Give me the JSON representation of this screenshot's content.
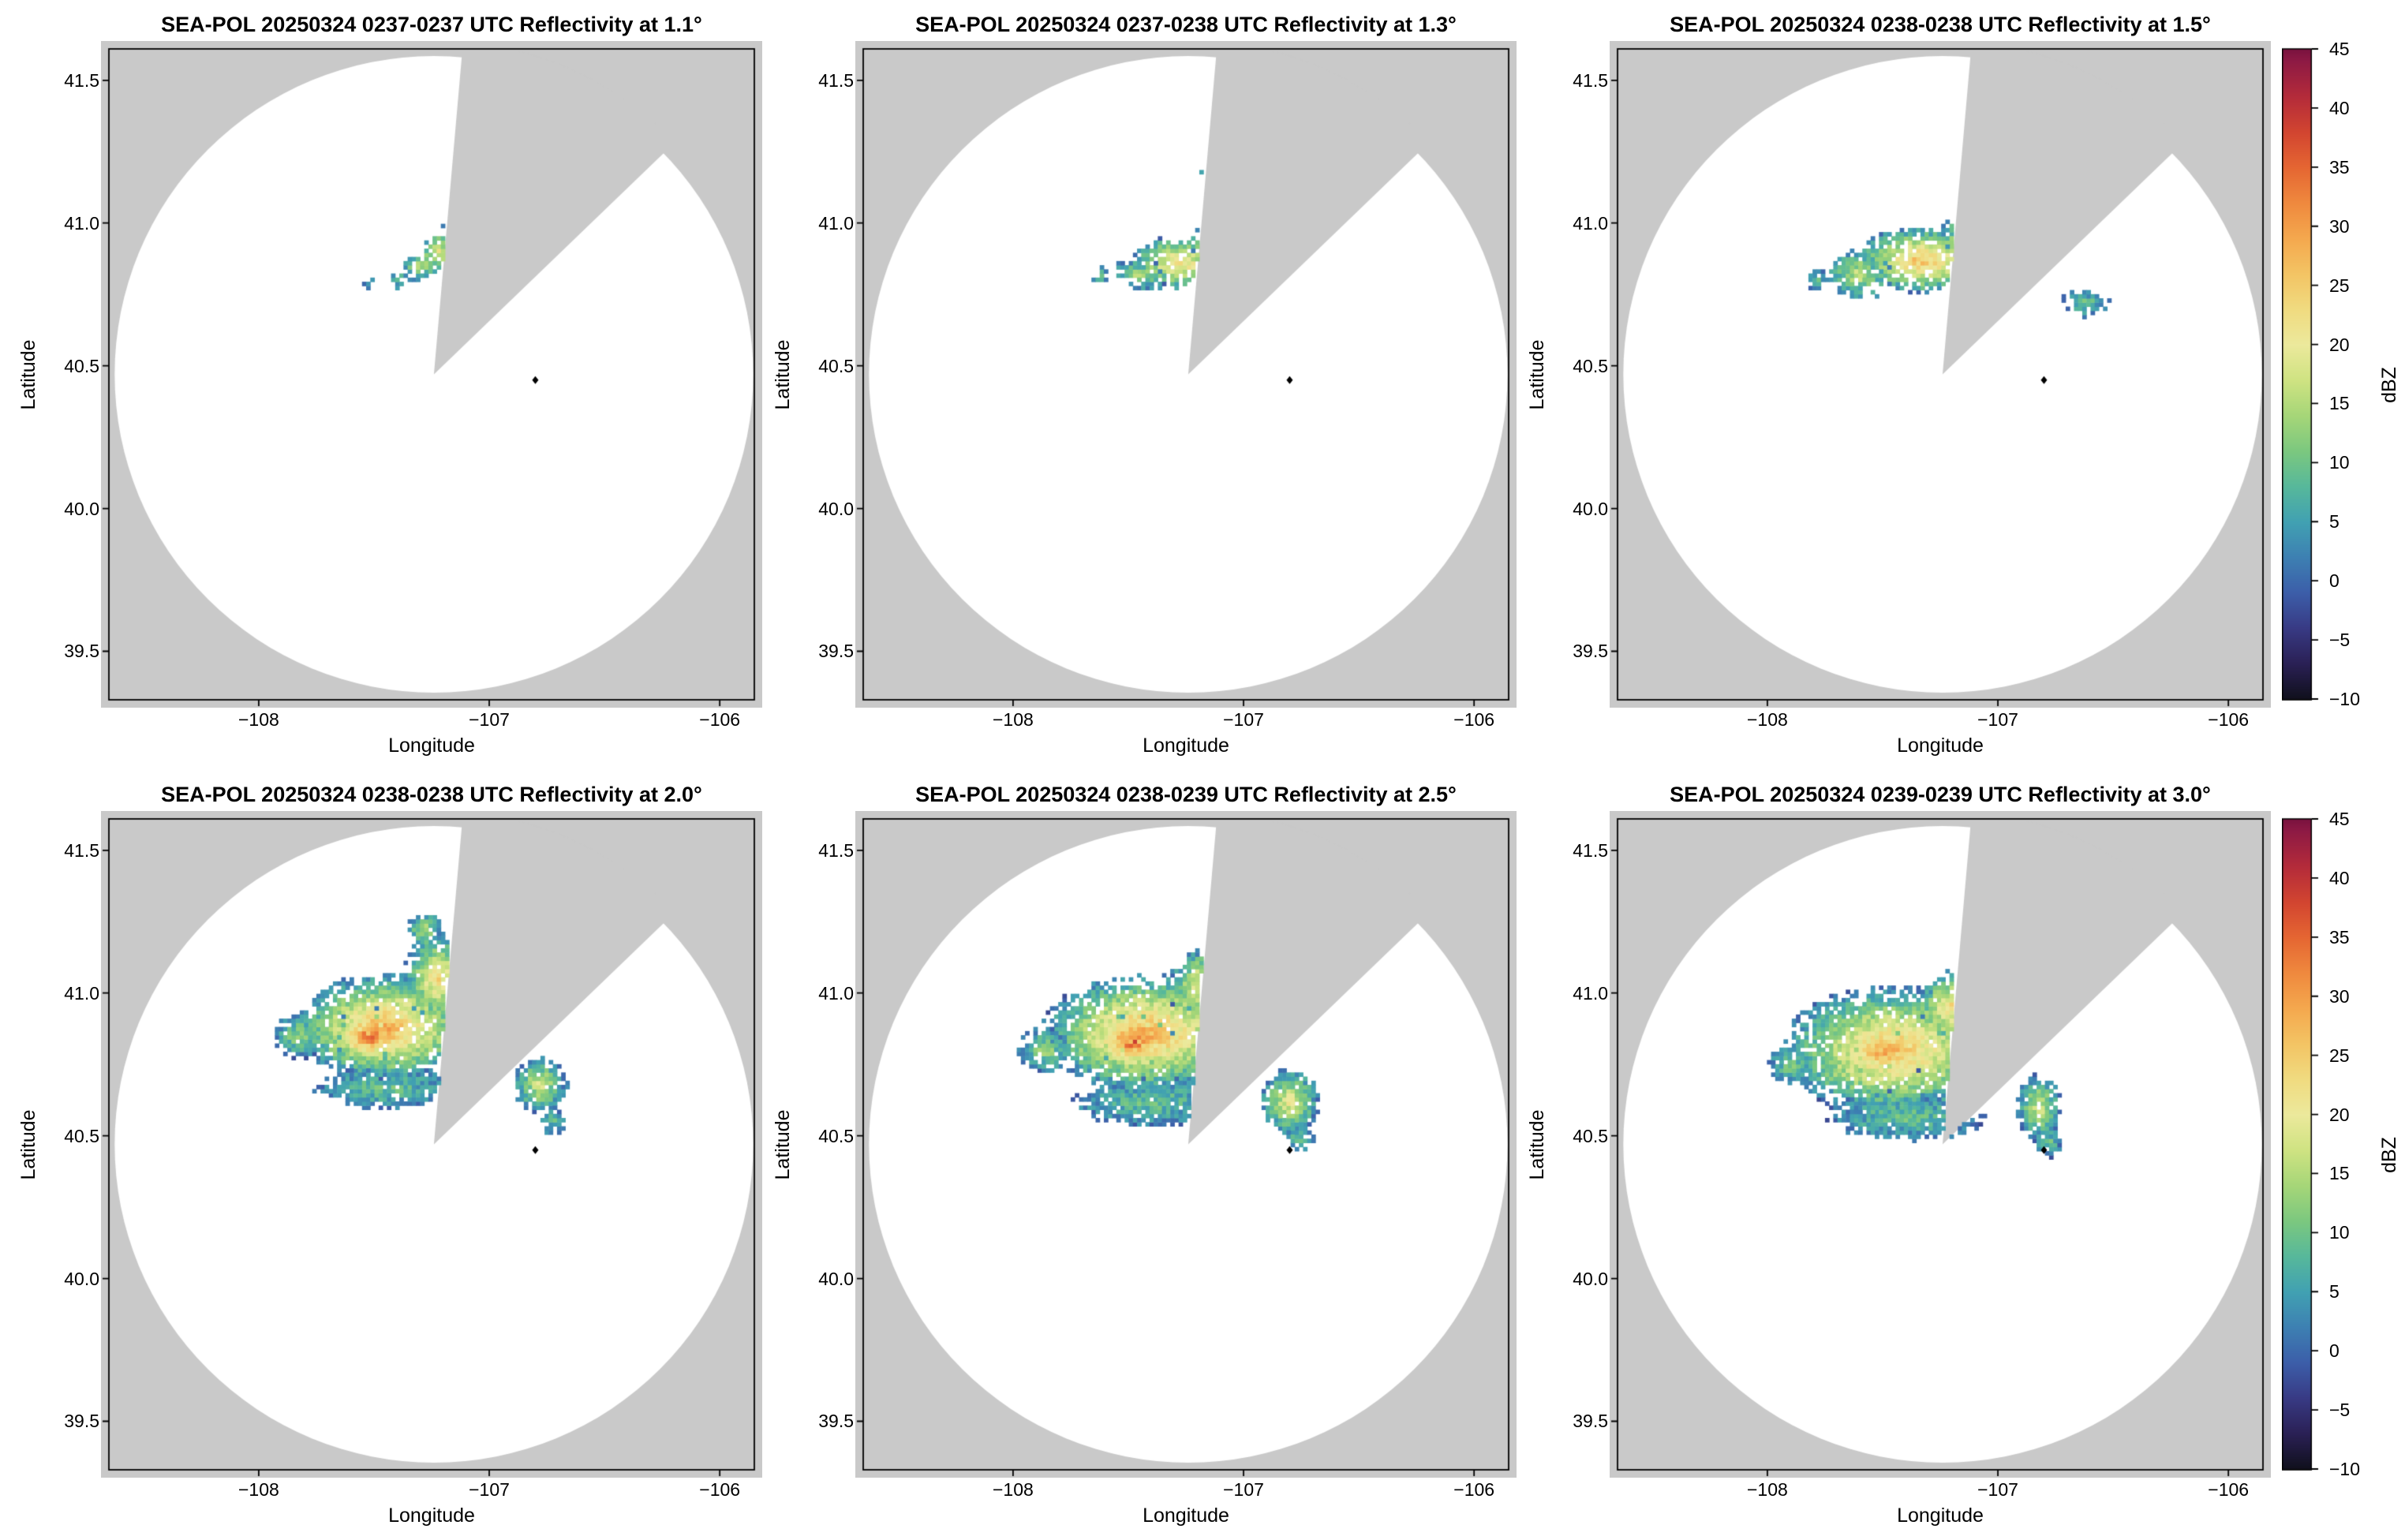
{
  "figure": {
    "background": "#ffffff",
    "panel_bg": "#c9c9c9",
    "coverage_color": "#ffffff",
    "text_color": "#000000"
  },
  "chart_data": {
    "type": "heatmap",
    "description": "Six PPI radar reflectivity panels from the SEA-POL radar on 20250324, elevations 1.1 to 3.0 degrees, plotted in longitude/latitude with a masked (gray) blocked sector and shared dBZ colorbar per row.",
    "radar_name": "SEA-POL",
    "date": "20250324",
    "axes": {
      "xlabel": "Longitude",
      "ylabel": "Latitude",
      "xlim": [
        -108.65,
        -105.85
      ],
      "ylim": [
        39.33,
        41.61
      ],
      "xticks": [
        -108,
        -107,
        -106
      ],
      "xtick_labels": [
        "−108",
        "−107",
        "−106"
      ],
      "yticks": [
        39.5,
        40.0,
        40.5,
        41.0,
        41.5
      ],
      "ytick_labels": [
        "39.5",
        "40.0",
        "40.5",
        "41.0",
        "41.5"
      ]
    },
    "colorbar": {
      "label": "dBZ",
      "min": -10,
      "max": 45,
      "ticks": [
        -10,
        -5,
        0,
        5,
        10,
        15,
        20,
        25,
        30,
        35,
        40,
        45
      ],
      "tick_labels": [
        "−10",
        "−5",
        "0",
        "5",
        "10",
        "15",
        "20",
        "25",
        "30",
        "35",
        "40",
        "45"
      ],
      "stops": [
        [
          -10,
          "#10101c"
        ],
        [
          -7,
          "#2a2055"
        ],
        [
          -4,
          "#383a84"
        ],
        [
          -1,
          "#3c5ea9"
        ],
        [
          2,
          "#3d80b2"
        ],
        [
          5,
          "#41a1b2"
        ],
        [
          8,
          "#57b89b"
        ],
        [
          11,
          "#7cc87f"
        ],
        [
          14,
          "#a6d678"
        ],
        [
          17,
          "#cfe382"
        ],
        [
          20,
          "#ece99c"
        ],
        [
          23,
          "#f0db80"
        ],
        [
          26,
          "#f3c464"
        ],
        [
          29,
          "#f4a84e"
        ],
        [
          32,
          "#ef893e"
        ],
        [
          35,
          "#e56632"
        ],
        [
          38,
          "#d24530"
        ],
        [
          41,
          "#b42b3a"
        ],
        [
          44,
          "#8e1a44"
        ],
        [
          45,
          "#7a123f"
        ]
      ]
    },
    "radar": {
      "coverage_center": [
        -107.24,
        40.47
      ],
      "coverage_radius_lon": 1.385,
      "coverage_radius_lat": 1.115,
      "blocked_sector_deg": [
        5,
        46
      ],
      "site_marker": [
        -106.8,
        40.45
      ]
    },
    "panels": [
      {
        "title": "SEA-POL 20250324 0237-0237 UTC Reflectivity at 1.1°",
        "elevation_deg": 1.1,
        "time_utc": "0237-0237",
        "seed": 101,
        "sparsity": 0.5,
        "echo_blobs": [
          [
            -107.22,
            40.9,
            0.1,
            0.075,
            20
          ],
          [
            -107.3,
            40.85,
            0.09,
            0.06,
            16
          ],
          [
            -107.17,
            40.96,
            0.06,
            0.05,
            15
          ],
          [
            -107.38,
            40.8,
            0.055,
            0.04,
            10
          ],
          [
            -107.52,
            40.79,
            0.03,
            0.025,
            8
          ],
          [
            -107.12,
            40.86,
            0.04,
            0.05,
            12
          ]
        ]
      },
      {
        "title": "SEA-POL 20250324 0237-0238 UTC Reflectivity at 1.3°",
        "elevation_deg": 1.3,
        "time_utc": "0237-0238",
        "seed": 202,
        "sparsity": 0.32,
        "echo_blobs": [
          [
            -107.28,
            40.86,
            0.22,
            0.1,
            24
          ],
          [
            -107.13,
            40.92,
            0.11,
            0.09,
            23
          ],
          [
            -107.45,
            40.82,
            0.13,
            0.06,
            15
          ],
          [
            -107.08,
            41.22,
            0.05,
            0.06,
            12
          ],
          [
            -107.16,
            41.17,
            0.035,
            0.04,
            9
          ],
          [
            -107.62,
            40.82,
            0.06,
            0.04,
            8
          ]
        ]
      },
      {
        "title": "SEA-POL 20250324 0238-0238 UTC Reflectivity at 1.5°",
        "elevation_deg": 1.5,
        "time_utc": "0238-0238",
        "seed": 303,
        "sparsity": 0.24,
        "echo_blobs": [
          [
            -107.33,
            40.87,
            0.3,
            0.12,
            27
          ],
          [
            -107.12,
            40.96,
            0.13,
            0.11,
            25
          ],
          [
            -107.6,
            40.82,
            0.15,
            0.09,
            17
          ],
          [
            -107.05,
            41.25,
            0.06,
            0.07,
            12
          ],
          [
            -106.62,
            40.72,
            0.11,
            0.05,
            10
          ],
          [
            -107.78,
            40.8,
            0.05,
            0.04,
            8
          ]
        ]
      },
      {
        "title": "SEA-POL 20250324 0238-0238 UTC Reflectivity at 2.0°",
        "elevation_deg": 2.0,
        "time_utc": "0238-0238",
        "seed": 404,
        "sparsity": 0.16,
        "echo_blobs": [
          [
            -107.45,
            40.88,
            0.4,
            0.19,
            29
          ],
          [
            -107.52,
            40.85,
            0.17,
            0.1,
            37
          ],
          [
            -107.22,
            41.05,
            0.16,
            0.16,
            24
          ],
          [
            -107.28,
            41.22,
            0.08,
            0.07,
            16
          ],
          [
            -107.82,
            40.85,
            0.12,
            0.08,
            14
          ],
          [
            -107.45,
            40.67,
            0.32,
            0.08,
            10
          ],
          [
            -106.78,
            40.68,
            0.12,
            0.1,
            18
          ],
          [
            -106.72,
            40.55,
            0.06,
            0.05,
            9
          ]
        ]
      },
      {
        "title": "SEA-POL 20250324 0238-0239 UTC Reflectivity at 2.5°",
        "elevation_deg": 2.5,
        "time_utc": "0238-0239",
        "seed": 505,
        "sparsity": 0.13,
        "echo_blobs": [
          [
            -107.42,
            40.86,
            0.46,
            0.21,
            29
          ],
          [
            -107.48,
            40.83,
            0.19,
            0.11,
            37
          ],
          [
            -107.15,
            41.02,
            0.18,
            0.14,
            26
          ],
          [
            -107.1,
            40.9,
            0.1,
            0.1,
            24
          ],
          [
            -107.86,
            40.8,
            0.12,
            0.08,
            14
          ],
          [
            -107.4,
            40.62,
            0.36,
            0.09,
            10
          ],
          [
            -106.8,
            40.62,
            0.13,
            0.12,
            20
          ],
          [
            -106.76,
            40.5,
            0.07,
            0.06,
            9
          ]
        ]
      },
      {
        "title": "SEA-POL 20250324 0239-0239 UTC Reflectivity at 3.0°",
        "elevation_deg": 3.0,
        "time_utc": "0239-0239",
        "seed": 606,
        "sparsity": 0.13,
        "echo_blobs": [
          [
            -107.45,
            40.8,
            0.5,
            0.23,
            27
          ],
          [
            -107.5,
            40.8,
            0.21,
            0.11,
            32
          ],
          [
            -107.2,
            40.95,
            0.16,
            0.13,
            24
          ],
          [
            -107.9,
            40.75,
            0.1,
            0.07,
            12
          ],
          [
            -107.4,
            40.57,
            0.36,
            0.09,
            10
          ],
          [
            -106.82,
            40.6,
            0.1,
            0.12,
            18
          ],
          [
            -106.78,
            40.48,
            0.06,
            0.06,
            10
          ]
        ]
      }
    ]
  }
}
